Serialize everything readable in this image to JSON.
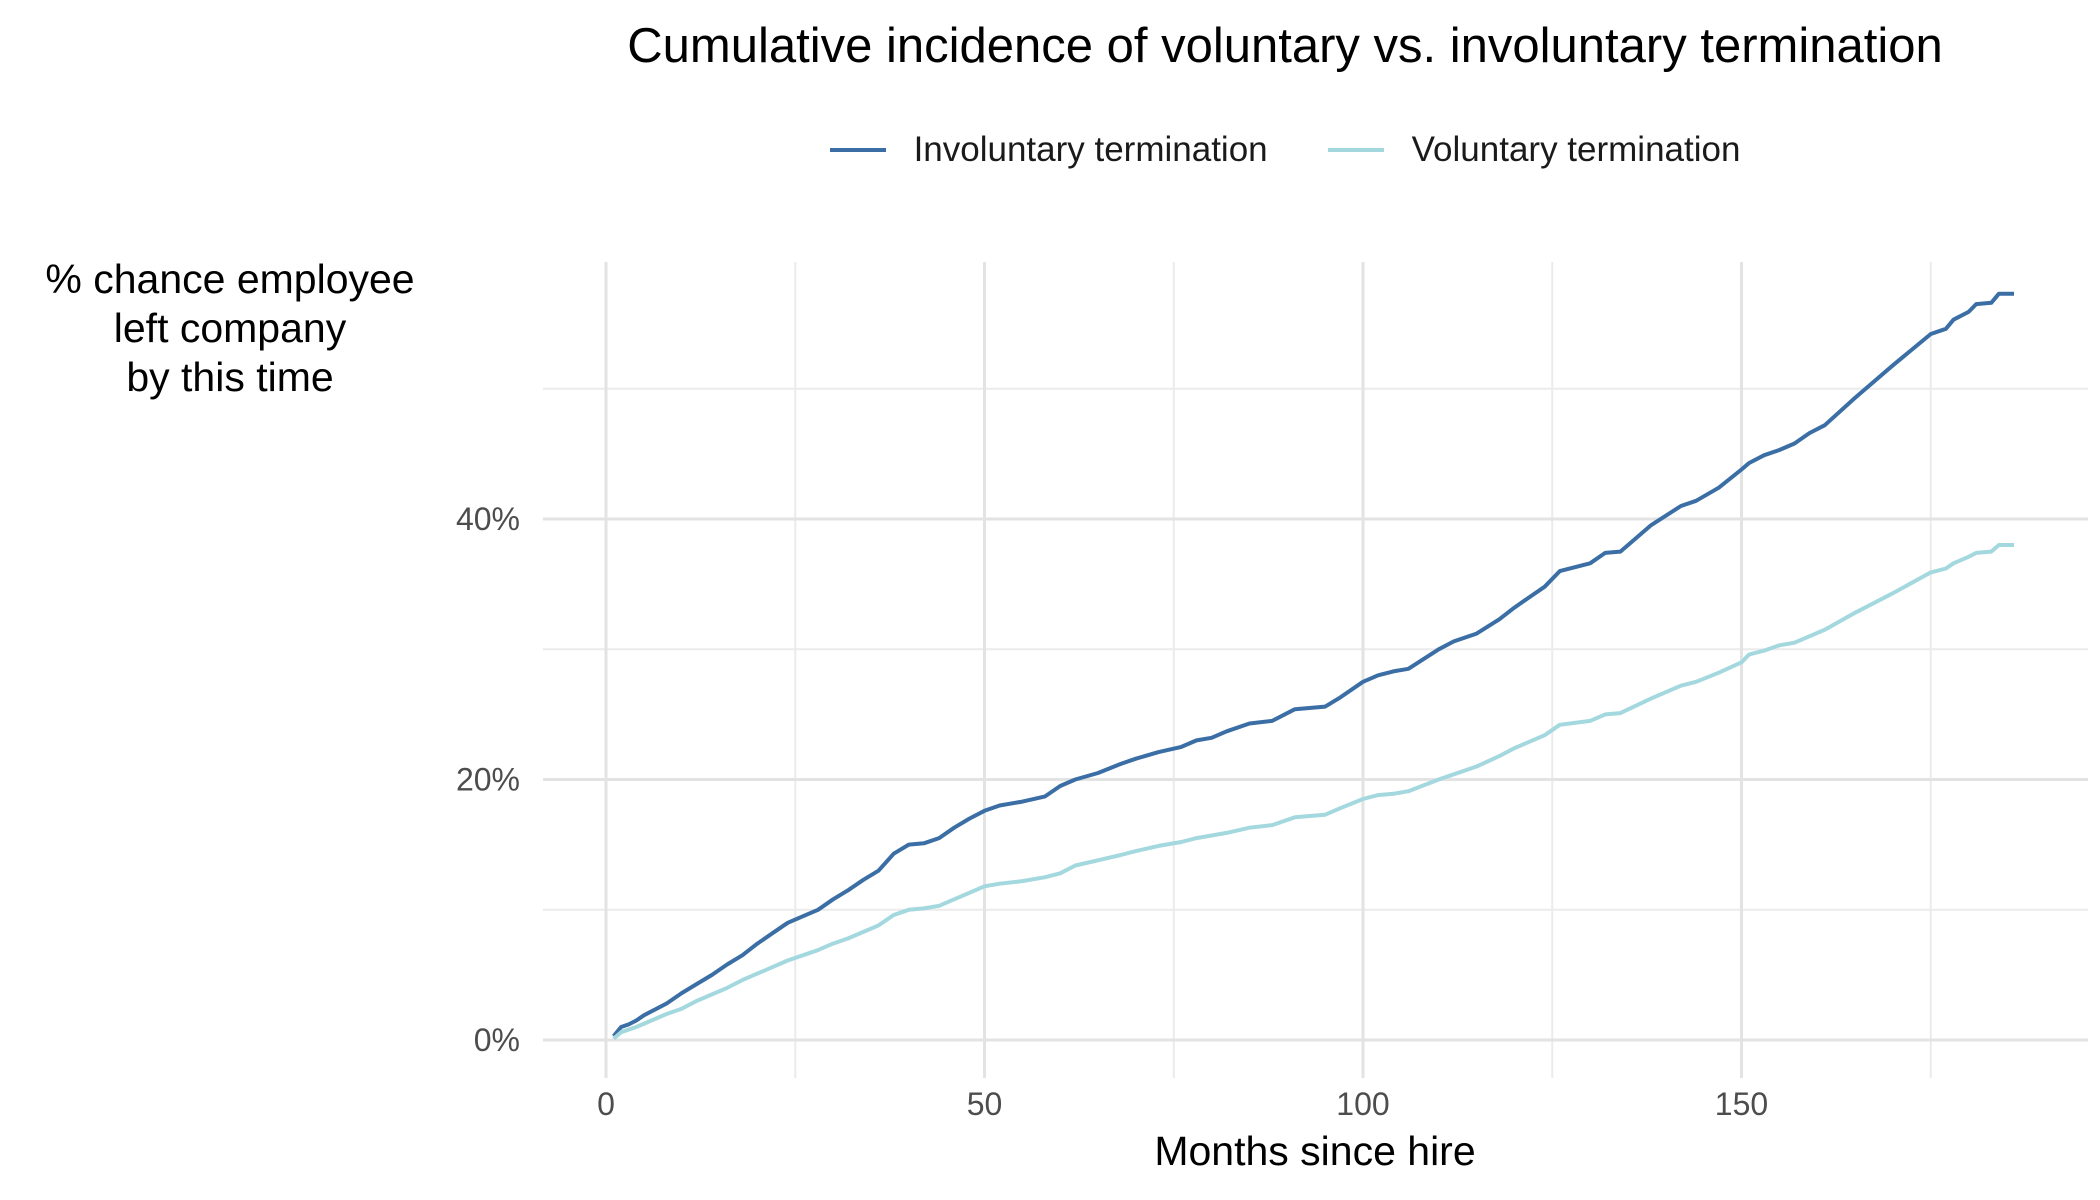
{
  "chart_data": {
    "type": "line",
    "title": "Cumulative incidence of voluntary vs. involuntary termination",
    "xlabel": "Months since hire",
    "ylabel_lines": [
      "% chance employee",
      "left company",
      "by this time"
    ],
    "xlim": [
      -7,
      195
    ],
    "ylim": [
      -3,
      60
    ],
    "x_ticks": [
      0,
      50,
      100,
      150
    ],
    "x_tick_labels": [
      "0",
      "50",
      "100",
      "150"
    ],
    "y_ticks": [
      0,
      20,
      40
    ],
    "y_tick_labels": [
      "0%",
      "20%",
      "40%"
    ],
    "grid": true,
    "legend_position": "top",
    "series": [
      {
        "name": "Involuntary termination",
        "color": "#3a6ea5",
        "points": [
          [
            1,
            0.3
          ],
          [
            2,
            1.0
          ],
          [
            3,
            1.2
          ],
          [
            4,
            1.5
          ],
          [
            5,
            1.9
          ],
          [
            8,
            2.8
          ],
          [
            10,
            3.6
          ],
          [
            12,
            4.3
          ],
          [
            14,
            5.0
          ],
          [
            16,
            5.8
          ],
          [
            18,
            6.5
          ],
          [
            20,
            7.4
          ],
          [
            22,
            8.2
          ],
          [
            24,
            9.0
          ],
          [
            26,
            9.5
          ],
          [
            28,
            10.0
          ],
          [
            30,
            10.8
          ],
          [
            32,
            11.5
          ],
          [
            34,
            12.3
          ],
          [
            36,
            13.0
          ],
          [
            38,
            14.3
          ],
          [
            40,
            15.0
          ],
          [
            42,
            15.1
          ],
          [
            44,
            15.5
          ],
          [
            46,
            16.3
          ],
          [
            48,
            17.0
          ],
          [
            50,
            17.6
          ],
          [
            52,
            18.0
          ],
          [
            55,
            18.3
          ],
          [
            58,
            18.7
          ],
          [
            60,
            19.5
          ],
          [
            62,
            20.0
          ],
          [
            65,
            20.5
          ],
          [
            68,
            21.2
          ],
          [
            70,
            21.6
          ],
          [
            73,
            22.1
          ],
          [
            76,
            22.5
          ],
          [
            78,
            23.0
          ],
          [
            80,
            23.2
          ],
          [
            82,
            23.7
          ],
          [
            85,
            24.3
          ],
          [
            88,
            24.5
          ],
          [
            91,
            25.4
          ],
          [
            95,
            25.6
          ],
          [
            97,
            26.3
          ],
          [
            100,
            27.5
          ],
          [
            102,
            28.0
          ],
          [
            104,
            28.3
          ],
          [
            106,
            28.5
          ],
          [
            110,
            30.0
          ],
          [
            112,
            30.6
          ],
          [
            115,
            31.2
          ],
          [
            118,
            32.3
          ],
          [
            120,
            33.2
          ],
          [
            122,
            34.0
          ],
          [
            124,
            34.8
          ],
          [
            126,
            36.0
          ],
          [
            130,
            36.6
          ],
          [
            132,
            37.4
          ],
          [
            134,
            37.5
          ],
          [
            138,
            39.5
          ],
          [
            142,
            41.0
          ],
          [
            144,
            41.4
          ],
          [
            147,
            42.4
          ],
          [
            150,
            43.8
          ],
          [
            151,
            44.3
          ],
          [
            153,
            44.9
          ],
          [
            155,
            45.3
          ],
          [
            157,
            45.8
          ],
          [
            159,
            46.6
          ],
          [
            161,
            47.2
          ],
          [
            165,
            49.3
          ],
          [
            170,
            51.8
          ],
          [
            175,
            54.2
          ],
          [
            177,
            54.6
          ],
          [
            178,
            55.3
          ],
          [
            180,
            55.9
          ],
          [
            181,
            56.5
          ],
          [
            183,
            56.6
          ],
          [
            184,
            57.3
          ],
          [
            186,
            57.3
          ]
        ]
      },
      {
        "name": "Voluntary termination",
        "color": "#a4d8df",
        "points": [
          [
            1,
            0.1
          ],
          [
            2,
            0.6
          ],
          [
            4,
            1.0
          ],
          [
            6,
            1.5
          ],
          [
            8,
            2.0
          ],
          [
            10,
            2.4
          ],
          [
            12,
            3.0
          ],
          [
            14,
            3.5
          ],
          [
            16,
            4.0
          ],
          [
            18,
            4.6
          ],
          [
            20,
            5.1
          ],
          [
            22,
            5.6
          ],
          [
            24,
            6.1
          ],
          [
            26,
            6.5
          ],
          [
            28,
            6.9
          ],
          [
            30,
            7.4
          ],
          [
            32,
            7.8
          ],
          [
            34,
            8.3
          ],
          [
            36,
            8.8
          ],
          [
            38,
            9.6
          ],
          [
            40,
            10.0
          ],
          [
            42,
            10.1
          ],
          [
            44,
            10.3
          ],
          [
            46,
            10.8
          ],
          [
            48,
            11.3
          ],
          [
            50,
            11.8
          ],
          [
            52,
            12.0
          ],
          [
            55,
            12.2
          ],
          [
            58,
            12.5
          ],
          [
            60,
            12.8
          ],
          [
            62,
            13.4
          ],
          [
            65,
            13.8
          ],
          [
            68,
            14.2
          ],
          [
            70,
            14.5
          ],
          [
            73,
            14.9
          ],
          [
            76,
            15.2
          ],
          [
            78,
            15.5
          ],
          [
            80,
            15.7
          ],
          [
            82,
            15.9
          ],
          [
            85,
            16.3
          ],
          [
            88,
            16.5
          ],
          [
            91,
            17.1
          ],
          [
            95,
            17.3
          ],
          [
            97,
            17.8
          ],
          [
            100,
            18.5
          ],
          [
            102,
            18.8
          ],
          [
            104,
            18.9
          ],
          [
            106,
            19.1
          ],
          [
            110,
            20.0
          ],
          [
            112,
            20.4
          ],
          [
            115,
            21.0
          ],
          [
            118,
            21.8
          ],
          [
            120,
            22.4
          ],
          [
            122,
            22.9
          ],
          [
            124,
            23.4
          ],
          [
            126,
            24.2
          ],
          [
            130,
            24.5
          ],
          [
            132,
            25.0
          ],
          [
            134,
            25.1
          ],
          [
            138,
            26.2
          ],
          [
            142,
            27.2
          ],
          [
            144,
            27.5
          ],
          [
            147,
            28.2
          ],
          [
            150,
            29.0
          ],
          [
            151,
            29.6
          ],
          [
            153,
            29.9
          ],
          [
            155,
            30.3
          ],
          [
            157,
            30.5
          ],
          [
            159,
            31.0
          ],
          [
            161,
            31.5
          ],
          [
            165,
            32.8
          ],
          [
            170,
            34.3
          ],
          [
            175,
            35.9
          ],
          [
            177,
            36.2
          ],
          [
            178,
            36.6
          ],
          [
            180,
            37.1
          ],
          [
            181,
            37.4
          ],
          [
            183,
            37.5
          ],
          [
            184,
            38.0
          ],
          [
            186,
            38.0
          ]
        ]
      }
    ]
  }
}
